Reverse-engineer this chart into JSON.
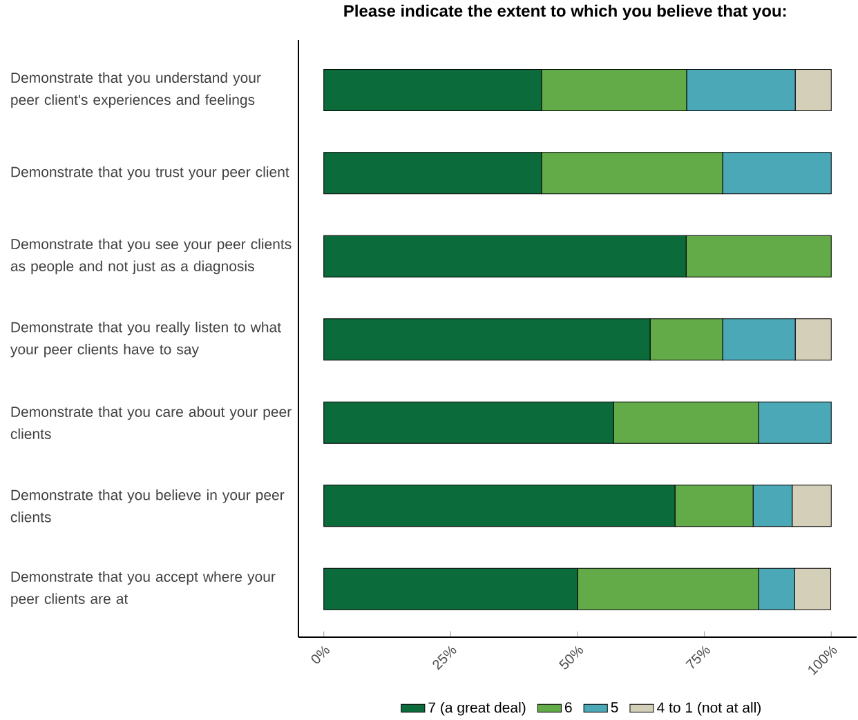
{
  "chart_data": {
    "type": "bar",
    "orientation": "horizontal",
    "stacked": true,
    "title": "Please indicate the extent to which you believe that you:",
    "categories": [
      "Demonstrate that you understand your peer client's experiences and feelings",
      "Demonstrate that you trust your peer client",
      "Demonstrate that you see your peer clients as people and not just as a diagnosis",
      "Demonstrate that you really listen to what your peer clients have to say",
      "Demonstrate that you care about your peer clients",
      "Demonstrate that you believe in your peer clients",
      "Demonstrate that you accept where your peer clients are at"
    ],
    "series": [
      {
        "name": "7 (a great deal)",
        "color": "#0b6b3a",
        "values": [
          42.9,
          42.9,
          71.4,
          64.3,
          57.1,
          69.2,
          50.0
        ]
      },
      {
        "name": "6",
        "color": "#62ab48",
        "values": [
          28.6,
          35.7,
          28.6,
          14.3,
          28.6,
          15.4,
          35.7
        ]
      },
      {
        "name": "5",
        "color": "#4ba8b7",
        "values": [
          21.4,
          21.4,
          null,
          14.3,
          14.3,
          7.7,
          7.1
        ]
      },
      {
        "name": "4 to 1 (not at all)",
        "color": "#d3cfb8",
        "values": [
          7.1,
          null,
          null,
          7.1,
          null,
          7.7,
          7.1
        ]
      }
    ],
    "xlim": [
      -5,
      105
    ],
    "xticks": [
      {
        "value": 0,
        "label": "0%"
      },
      {
        "value": 25,
        "label": "25%"
      },
      {
        "value": 50,
        "label": "50%"
      },
      {
        "value": 75,
        "label": "75%"
      },
      {
        "value": 100,
        "label": "100%"
      }
    ],
    "legend": "bottom"
  }
}
